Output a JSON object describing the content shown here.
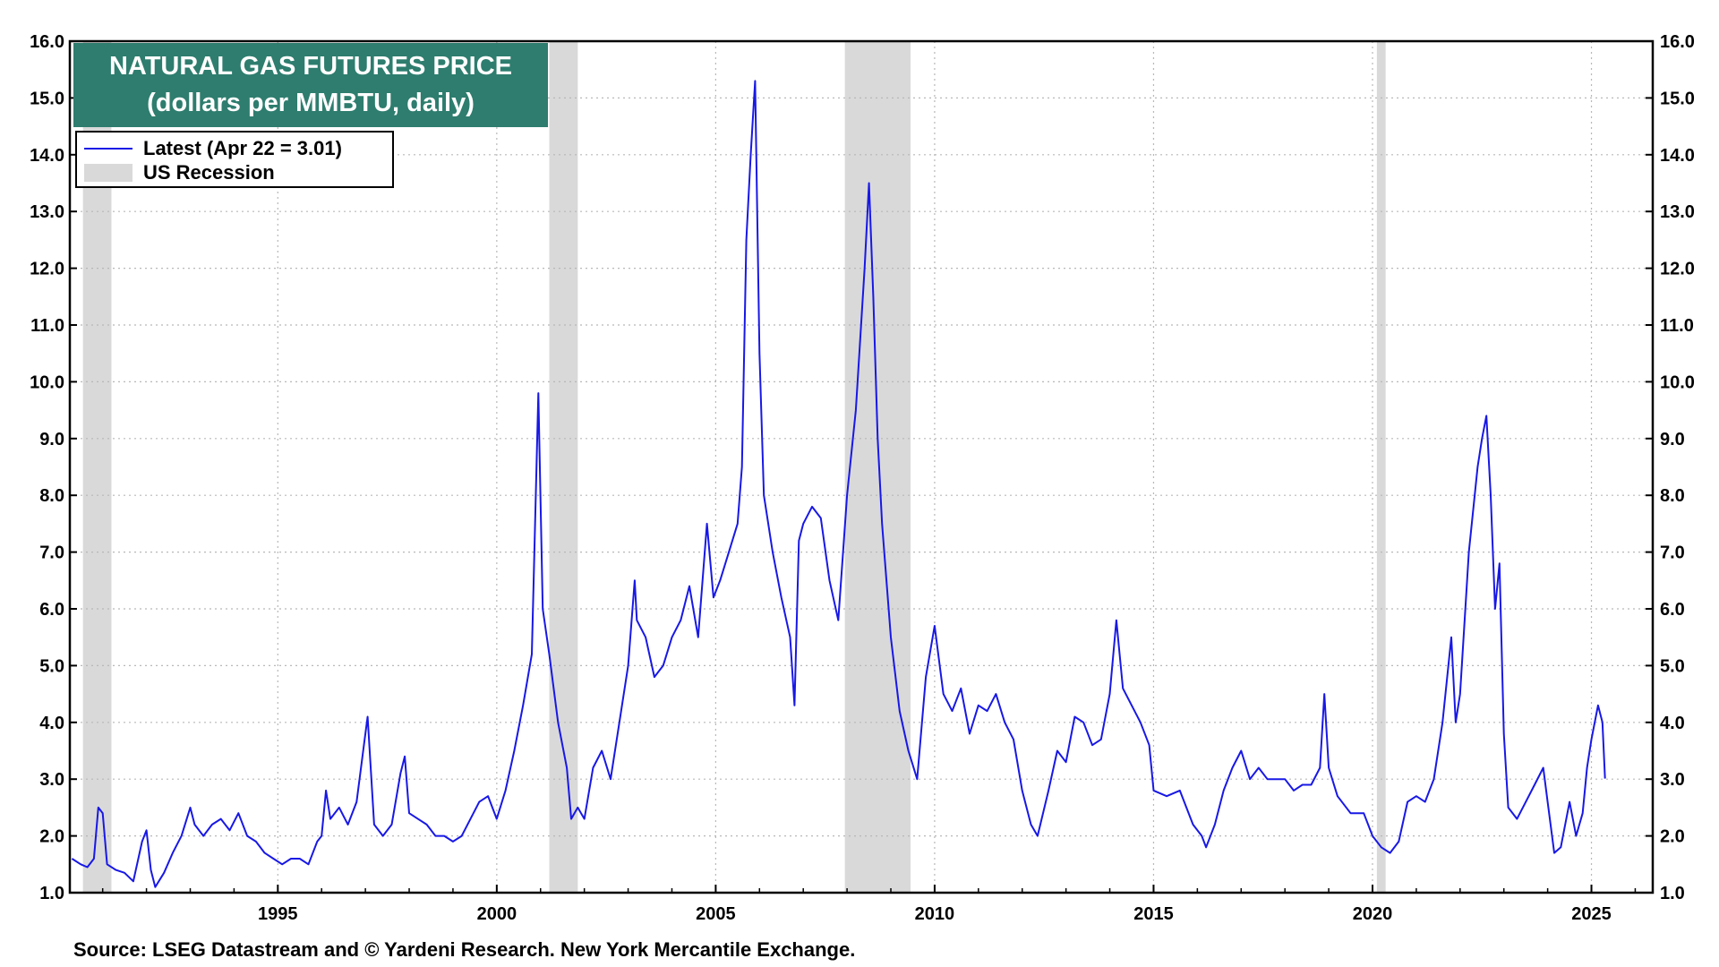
{
  "chart_data": {
    "type": "line",
    "title": "NATURAL GAS FUTURES PRICE",
    "subtitle": "(dollars per MMBTU, daily)",
    "ylim": [
      1.0,
      16.0
    ],
    "yticks": [
      "1.0",
      "2.0",
      "3.0",
      "4.0",
      "5.0",
      "6.0",
      "7.0",
      "8.0",
      "9.0",
      "10.0",
      "11.0",
      "12.0",
      "13.0",
      "14.0",
      "15.0",
      "16.0"
    ],
    "xlim": [
      1990.25,
      2026.4
    ],
    "xticks": [
      "1995",
      "2000",
      "2005",
      "2010",
      "2015",
      "2020",
      "2025"
    ],
    "grid": true,
    "legend_placement": "top-left",
    "recessions": [
      [
        1990.55,
        1991.2
      ],
      [
        2001.2,
        2001.85
      ],
      [
        2007.95,
        2009.45
      ],
      [
        2020.1,
        2020.3
      ]
    ],
    "series": [
      {
        "name": "Latest (Apr 22 = 3.01)",
        "color": "#1818e6",
        "points": [
          [
            1990.3,
            1.6
          ],
          [
            1990.5,
            1.5
          ],
          [
            1990.65,
            1.45
          ],
          [
            1990.8,
            1.6
          ],
          [
            1990.9,
            2.5
          ],
          [
            1991.0,
            2.4
          ],
          [
            1991.1,
            1.5
          ],
          [
            1991.3,
            1.4
          ],
          [
            1991.5,
            1.35
          ],
          [
            1991.7,
            1.2
          ],
          [
            1991.9,
            1.9
          ],
          [
            1992.0,
            2.1
          ],
          [
            1992.1,
            1.4
          ],
          [
            1992.2,
            1.1
          ],
          [
            1992.4,
            1.35
          ],
          [
            1992.6,
            1.7
          ],
          [
            1992.8,
            2.0
          ],
          [
            1993.0,
            2.5
          ],
          [
            1993.1,
            2.2
          ],
          [
            1993.3,
            2.0
          ],
          [
            1993.5,
            2.2
          ],
          [
            1993.7,
            2.3
          ],
          [
            1993.9,
            2.1
          ],
          [
            1994.1,
            2.4
          ],
          [
            1994.3,
            2.0
          ],
          [
            1994.5,
            1.9
          ],
          [
            1994.7,
            1.7
          ],
          [
            1994.9,
            1.6
          ],
          [
            1995.1,
            1.5
          ],
          [
            1995.3,
            1.6
          ],
          [
            1995.5,
            1.6
          ],
          [
            1995.7,
            1.5
          ],
          [
            1995.9,
            1.9
          ],
          [
            1996.0,
            2.0
          ],
          [
            1996.1,
            2.8
          ],
          [
            1996.2,
            2.3
          ],
          [
            1996.4,
            2.5
          ],
          [
            1996.6,
            2.2
          ],
          [
            1996.8,
            2.6
          ],
          [
            1997.0,
            3.8
          ],
          [
            1997.05,
            4.1
          ],
          [
            1997.2,
            2.2
          ],
          [
            1997.4,
            2.0
          ],
          [
            1997.6,
            2.2
          ],
          [
            1997.8,
            3.1
          ],
          [
            1997.9,
            3.4
          ],
          [
            1998.0,
            2.4
          ],
          [
            1998.2,
            2.3
          ],
          [
            1998.4,
            2.2
          ],
          [
            1998.6,
            2.0
          ],
          [
            1998.8,
            2.0
          ],
          [
            1999.0,
            1.9
          ],
          [
            1999.2,
            2.0
          ],
          [
            1999.4,
            2.3
          ],
          [
            1999.6,
            2.6
          ],
          [
            1999.8,
            2.7
          ],
          [
            2000.0,
            2.3
          ],
          [
            2000.2,
            2.8
          ],
          [
            2000.4,
            3.5
          ],
          [
            2000.6,
            4.3
          ],
          [
            2000.8,
            5.2
          ],
          [
            2000.95,
            9.8
          ],
          [
            2001.05,
            6.0
          ],
          [
            2001.2,
            5.2
          ],
          [
            2001.4,
            4.0
          ],
          [
            2001.6,
            3.2
          ],
          [
            2001.7,
            2.3
          ],
          [
            2001.85,
            2.5
          ],
          [
            2002.0,
            2.3
          ],
          [
            2002.2,
            3.2
          ],
          [
            2002.4,
            3.5
          ],
          [
            2002.6,
            3.0
          ],
          [
            2002.8,
            4.0
          ],
          [
            2003.0,
            5.0
          ],
          [
            2003.15,
            6.5
          ],
          [
            2003.2,
            5.8
          ],
          [
            2003.4,
            5.5
          ],
          [
            2003.6,
            4.8
          ],
          [
            2003.8,
            5.0
          ],
          [
            2004.0,
            5.5
          ],
          [
            2004.2,
            5.8
          ],
          [
            2004.4,
            6.4
          ],
          [
            2004.6,
            5.5
          ],
          [
            2004.8,
            7.5
          ],
          [
            2004.95,
            6.2
          ],
          [
            2005.1,
            6.5
          ],
          [
            2005.3,
            7.0
          ],
          [
            2005.5,
            7.5
          ],
          [
            2005.6,
            8.5
          ],
          [
            2005.7,
            12.5
          ],
          [
            2005.8,
            14.0
          ],
          [
            2005.9,
            15.3
          ],
          [
            2006.0,
            10.5
          ],
          [
            2006.1,
            8.0
          ],
          [
            2006.3,
            7.0
          ],
          [
            2006.5,
            6.2
          ],
          [
            2006.7,
            5.5
          ],
          [
            2006.8,
            4.3
          ],
          [
            2006.9,
            7.2
          ],
          [
            2007.0,
            7.5
          ],
          [
            2007.2,
            7.8
          ],
          [
            2007.4,
            7.6
          ],
          [
            2007.6,
            6.5
          ],
          [
            2007.8,
            5.8
          ],
          [
            2008.0,
            8.0
          ],
          [
            2008.2,
            9.5
          ],
          [
            2008.4,
            12.0
          ],
          [
            2008.5,
            13.5
          ],
          [
            2008.6,
            11.5
          ],
          [
            2008.7,
            9.0
          ],
          [
            2008.8,
            7.5
          ],
          [
            2009.0,
            5.5
          ],
          [
            2009.2,
            4.2
          ],
          [
            2009.4,
            3.5
          ],
          [
            2009.6,
            3.0
          ],
          [
            2009.8,
            4.8
          ],
          [
            2010.0,
            5.7
          ],
          [
            2010.2,
            4.5
          ],
          [
            2010.4,
            4.2
          ],
          [
            2010.6,
            4.6
          ],
          [
            2010.8,
            3.8
          ],
          [
            2011.0,
            4.3
          ],
          [
            2011.2,
            4.2
          ],
          [
            2011.4,
            4.5
          ],
          [
            2011.6,
            4.0
          ],
          [
            2011.8,
            3.7
          ],
          [
            2012.0,
            2.8
          ],
          [
            2012.2,
            2.2
          ],
          [
            2012.35,
            2.0
          ],
          [
            2012.6,
            2.8
          ],
          [
            2012.8,
            3.5
          ],
          [
            2013.0,
            3.3
          ],
          [
            2013.2,
            4.1
          ],
          [
            2013.4,
            4.0
          ],
          [
            2013.6,
            3.6
          ],
          [
            2013.8,
            3.7
          ],
          [
            2014.0,
            4.5
          ],
          [
            2014.15,
            5.8
          ],
          [
            2014.3,
            4.6
          ],
          [
            2014.5,
            4.3
          ],
          [
            2014.7,
            4.0
          ],
          [
            2014.9,
            3.6
          ],
          [
            2015.0,
            2.8
          ],
          [
            2015.3,
            2.7
          ],
          [
            2015.6,
            2.8
          ],
          [
            2015.9,
            2.2
          ],
          [
            2016.1,
            2.0
          ],
          [
            2016.2,
            1.8
          ],
          [
            2016.4,
            2.2
          ],
          [
            2016.6,
            2.8
          ],
          [
            2016.8,
            3.2
          ],
          [
            2017.0,
            3.5
          ],
          [
            2017.2,
            3.0
          ],
          [
            2017.4,
            3.2
          ],
          [
            2017.6,
            3.0
          ],
          [
            2017.8,
            3.0
          ],
          [
            2018.0,
            3.0
          ],
          [
            2018.2,
            2.8
          ],
          [
            2018.4,
            2.9
          ],
          [
            2018.6,
            2.9
          ],
          [
            2018.8,
            3.2
          ],
          [
            2018.9,
            4.5
          ],
          [
            2019.0,
            3.2
          ],
          [
            2019.2,
            2.7
          ],
          [
            2019.5,
            2.4
          ],
          [
            2019.8,
            2.4
          ],
          [
            2020.0,
            2.0
          ],
          [
            2020.2,
            1.8
          ],
          [
            2020.4,
            1.7
          ],
          [
            2020.6,
            1.9
          ],
          [
            2020.8,
            2.6
          ],
          [
            2021.0,
            2.7
          ],
          [
            2021.2,
            2.6
          ],
          [
            2021.4,
            3.0
          ],
          [
            2021.6,
            4.0
          ],
          [
            2021.8,
            5.5
          ],
          [
            2021.9,
            4.0
          ],
          [
            2022.0,
            4.5
          ],
          [
            2022.2,
            7.0
          ],
          [
            2022.4,
            8.5
          ],
          [
            2022.5,
            9.0
          ],
          [
            2022.6,
            9.4
          ],
          [
            2022.7,
            8.0
          ],
          [
            2022.8,
            6.0
          ],
          [
            2022.9,
            6.8
          ],
          [
            2023.0,
            3.8
          ],
          [
            2023.1,
            2.5
          ],
          [
            2023.3,
            2.3
          ],
          [
            2023.5,
            2.6
          ],
          [
            2023.7,
            2.9
          ],
          [
            2023.9,
            3.2
          ],
          [
            2024.0,
            2.6
          ],
          [
            2024.15,
            1.7
          ],
          [
            2024.3,
            1.8
          ],
          [
            2024.5,
            2.6
          ],
          [
            2024.65,
            2.0
          ],
          [
            2024.8,
            2.4
          ],
          [
            2024.9,
            3.2
          ],
          [
            2025.0,
            3.7
          ],
          [
            2025.15,
            4.3
          ],
          [
            2025.25,
            4.0
          ],
          [
            2025.31,
            3.01
          ]
        ]
      }
    ],
    "source": "Source: LSEG Datastream and © Yardeni Research. New York Mercantile Exchange."
  }
}
